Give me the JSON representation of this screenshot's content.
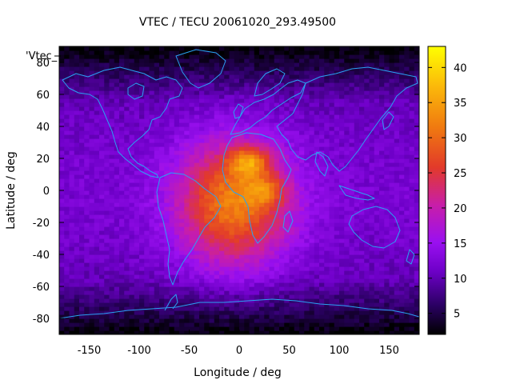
{
  "chart_data": {
    "type": "heatmap",
    "title": "VTEC / TECU 20061020_293.49500",
    "xlabel": "Longitude / deg",
    "ylabel": "Latitude / deg",
    "xlim": [
      -180,
      180
    ],
    "ylim": [
      -90,
      90
    ],
    "x_ticks": [
      -150,
      -100,
      -50,
      0,
      50,
      100,
      150
    ],
    "y_ticks": [
      -80,
      -60,
      -40,
      -20,
      0,
      20,
      40,
      60,
      80
    ],
    "series_label": "'Vtec_",
    "colorbar": {
      "range": [
        2,
        43
      ],
      "ticks": [
        5,
        10,
        15,
        20,
        25,
        30,
        35,
        40
      ],
      "palette": [
        "#000000",
        "#2a0062",
        "#6e00c8",
        "#9a10f0",
        "#c81ea8",
        "#e23a2a",
        "#f07a10",
        "#fbb80a",
        "#ffff00"
      ]
    },
    "grid": false,
    "peaks": [
      {
        "lon": 10,
        "lat": 18,
        "vtec": 43
      },
      {
        "lon": 25,
        "lat": 0,
        "vtec": 38
      }
    ],
    "background_vtec": 8
  }
}
